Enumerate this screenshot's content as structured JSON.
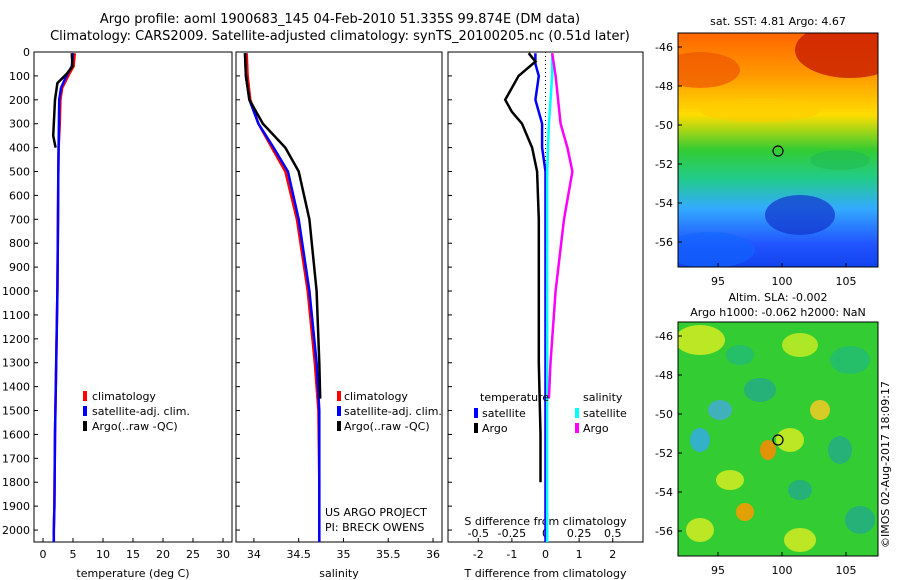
{
  "header": {
    "line1": "Argo profile: aoml 1900683_145 04-Feb-2010 51.335S 99.874E (DM data)",
    "line2": "Climatology: CARS2009. Satellite-adjusted climatology: synTS_20100205.nc (0.51d later)"
  },
  "depth_ticks": [
    "0",
    "100",
    "200",
    "300",
    "400",
    "500",
    "600",
    "700",
    "800",
    "900",
    "1000",
    "1100",
    "1200",
    "1300",
    "1400",
    "1500",
    "1600",
    "1700",
    "1800",
    "1900",
    "2000"
  ],
  "colors": {
    "climatology": "#ff0000",
    "satellite": "#0000ff",
    "argo": "#000000",
    "sal_sat": "#00ffff",
    "sal_argo": "#ff00ff"
  },
  "chart_data": [
    {
      "type": "line",
      "name_hint": "temperature",
      "xlabel": "temperature (deg C)",
      "xticks": [
        "0",
        "5",
        "10",
        "15",
        "20",
        "25",
        "30"
      ],
      "xlim": [
        -1.5,
        31.5
      ],
      "ylim": [
        2050,
        0
      ],
      "legend": {
        "placement": "lower-middle",
        "items": [
          "climatology",
          "satellite-adj. clim.",
          "Argo(..raw -QC)"
        ]
      },
      "series": [
        {
          "name": "climatology",
          "color": "climatology",
          "points": [
            [
              5.3,
              5
            ],
            [
              5.1,
              60
            ],
            [
              4.2,
              100
            ],
            [
              3.2,
              150
            ],
            [
              2.9,
              200
            ],
            [
              2.8,
              300
            ],
            [
              2.6,
              400
            ],
            [
              2.55,
              500
            ],
            [
              2.5,
              700
            ],
            [
              2.4,
              1000
            ],
            [
              2.2,
              1300
            ],
            [
              2.0,
              1600
            ],
            [
              1.9,
              1900
            ],
            [
              1.8,
              2000
            ],
            [
              1.8,
              2050
            ]
          ]
        },
        {
          "name": "satellite-adj. clim.",
          "color": "satellite",
          "points": [
            [
              5.0,
              5
            ],
            [
              4.8,
              60
            ],
            [
              3.9,
              100
            ],
            [
              3.0,
              150
            ],
            [
              2.7,
              200
            ],
            [
              2.65,
              300
            ],
            [
              2.6,
              400
            ],
            [
              2.55,
              500
            ],
            [
              2.5,
              700
            ],
            [
              2.4,
              1000
            ],
            [
              2.2,
              1300
            ],
            [
              2.0,
              1600
            ],
            [
              1.9,
              1900
            ],
            [
              1.8,
              2000
            ],
            [
              1.8,
              2050
            ]
          ]
        },
        {
          "name": "Argo(..raw -QC)",
          "color": "argo",
          "points": [
            [
              4.8,
              5
            ],
            [
              4.9,
              60
            ],
            [
              4.0,
              90
            ],
            [
              2.4,
              130
            ],
            [
              2.0,
              200
            ],
            [
              1.9,
              250
            ],
            [
              1.8,
              300
            ],
            [
              1.7,
              350
            ],
            [
              2.1,
              400
            ]
          ]
        }
      ]
    },
    {
      "type": "line",
      "name_hint": "salinity",
      "xlabel": "salinity",
      "xticks": [
        "34",
        "34.5",
        "35",
        "35.5",
        "36"
      ],
      "xlim": [
        33.8,
        36.1
      ],
      "ylim": [
        2050,
        0
      ],
      "legend": {
        "placement": "lower-right",
        "items": [
          "climatology",
          "satellite-adj. clim.",
          "Argo(..raw -QC)"
        ]
      },
      "annotation": [
        "US ARGO PROJECT",
        "PI: BRECK OWENS"
      ],
      "series": [
        {
          "name": "climatology",
          "color": "climatology",
          "points": [
            [
              33.92,
              5
            ],
            [
              33.93,
              100
            ],
            [
              33.96,
              200
            ],
            [
              34.05,
              300
            ],
            [
              34.2,
              400
            ],
            [
              34.35,
              500
            ],
            [
              34.48,
              700
            ],
            [
              34.6,
              1000
            ],
            [
              34.68,
              1300
            ],
            [
              34.72,
              1500
            ],
            [
              34.73,
              1800
            ],
            [
              34.73,
              2050
            ]
          ]
        },
        {
          "name": "satellite-adj. clim.",
          "color": "satellite",
          "points": [
            [
              33.9,
              5
            ],
            [
              33.91,
              100
            ],
            [
              33.95,
              200
            ],
            [
              34.05,
              300
            ],
            [
              34.22,
              400
            ],
            [
              34.38,
              500
            ],
            [
              34.5,
              700
            ],
            [
              34.62,
              1000
            ],
            [
              34.7,
              1300
            ],
            [
              34.73,
              1500
            ],
            [
              34.73,
              1800
            ],
            [
              34.73,
              2050
            ]
          ]
        },
        {
          "name": "Argo(..raw -QC)",
          "color": "argo",
          "points": [
            [
              33.9,
              5
            ],
            [
              33.91,
              100
            ],
            [
              33.95,
              200
            ],
            [
              34.1,
              300
            ],
            [
              34.35,
              400
            ],
            [
              34.5,
              500
            ],
            [
              34.62,
              700
            ],
            [
              34.7,
              1000
            ],
            [
              34.73,
              1300
            ],
            [
              34.74,
              1450
            ]
          ]
        }
      ]
    },
    {
      "type": "line",
      "name_hint": "differences",
      "xlabel": "T difference from climatology",
      "xlabel_top": "S difference from climatology",
      "xticks_T": [
        "-2",
        "-1",
        "0",
        "1",
        "2"
      ],
      "xticks_S": [
        "-0.5",
        "-0.25",
        "0",
        "0.25",
        "0.5"
      ],
      "xlim_T": [
        -2.9,
        2.9
      ],
      "ylim": [
        2050,
        0
      ],
      "legend": {
        "placement": "lower-middle",
        "temperature_title": "temperature",
        "salinity_title": "salinity",
        "items": [
          "satellite",
          "Argo",
          "satellite",
          "Argo"
        ]
      },
      "series": [
        {
          "name": "temperature satellite",
          "color": "satellite",
          "points_T": [
            [
              -0.3,
              5
            ],
            [
              -0.3,
              50
            ],
            [
              -0.2,
              100
            ],
            [
              -0.3,
              200
            ],
            [
              -0.1,
              300
            ],
            [
              -0.1,
              400
            ],
            [
              0,
              500
            ],
            [
              0,
              700
            ],
            [
              0,
              1000
            ],
            [
              0,
              1400
            ],
            [
              0,
              1800
            ],
            [
              0,
              2050
            ]
          ]
        },
        {
          "name": "temperature Argo",
          "color": "argo",
          "points_T": [
            [
              -0.5,
              5
            ],
            [
              -0.3,
              40
            ],
            [
              -0.8,
              100
            ],
            [
              -1.2,
              200
            ],
            [
              -1.0,
              250
            ],
            [
              -0.7,
              300
            ],
            [
              -0.4,
              400
            ],
            [
              -0.25,
              500
            ],
            [
              -0.2,
              700
            ],
            [
              -0.2,
              1000
            ],
            [
              -0.2,
              1300
            ],
            [
              -0.15,
              1600
            ],
            [
              -0.15,
              1800
            ]
          ]
        },
        {
          "name": "salinity satellite",
          "color": "sal_sat",
          "points_T": [
            [
              0.2,
              5
            ],
            [
              0.2,
              100
            ],
            [
              0.1,
              300
            ],
            [
              0.05,
              500
            ],
            [
              0.05,
              1000
            ],
            [
              0.05,
              1500
            ],
            [
              0.05,
              2050
            ]
          ]
        },
        {
          "name": "salinity Argo",
          "color": "sal_argo",
          "points_T": [
            [
              0.2,
              5
            ],
            [
              0.3,
              100
            ],
            [
              0.45,
              300
            ],
            [
              0.65,
              400
            ],
            [
              0.8,
              500
            ],
            [
              0.55,
              700
            ],
            [
              0.3,
              1000
            ],
            [
              0.15,
              1300
            ],
            [
              0.1,
              1450
            ]
          ]
        }
      ]
    }
  ],
  "maps": [
    {
      "title": "sat. SST: 4.81 Argo: 4.67",
      "yticks": [
        "-46",
        "-48",
        "-50",
        "-52",
        "-54",
        "-56"
      ],
      "xticks": [
        "95",
        "100",
        "105"
      ],
      "marker": {
        "lon": 99.874,
        "lat": -51.335
      }
    },
    {
      "title1": "Altim. SLA: -0.002",
      "title2": "Argo h1000: -0.062 h2000: NaN",
      "yticks": [
        "-46",
        "-48",
        "-50",
        "-52",
        "-54",
        "-56"
      ],
      "xticks": [
        "95",
        "100",
        "105"
      ],
      "marker": {
        "lon": 99.874,
        "lat": -51.335
      }
    }
  ],
  "footer": {
    "vertical_stamp": "©IMOS 02-Aug-2017 18:09:17"
  }
}
